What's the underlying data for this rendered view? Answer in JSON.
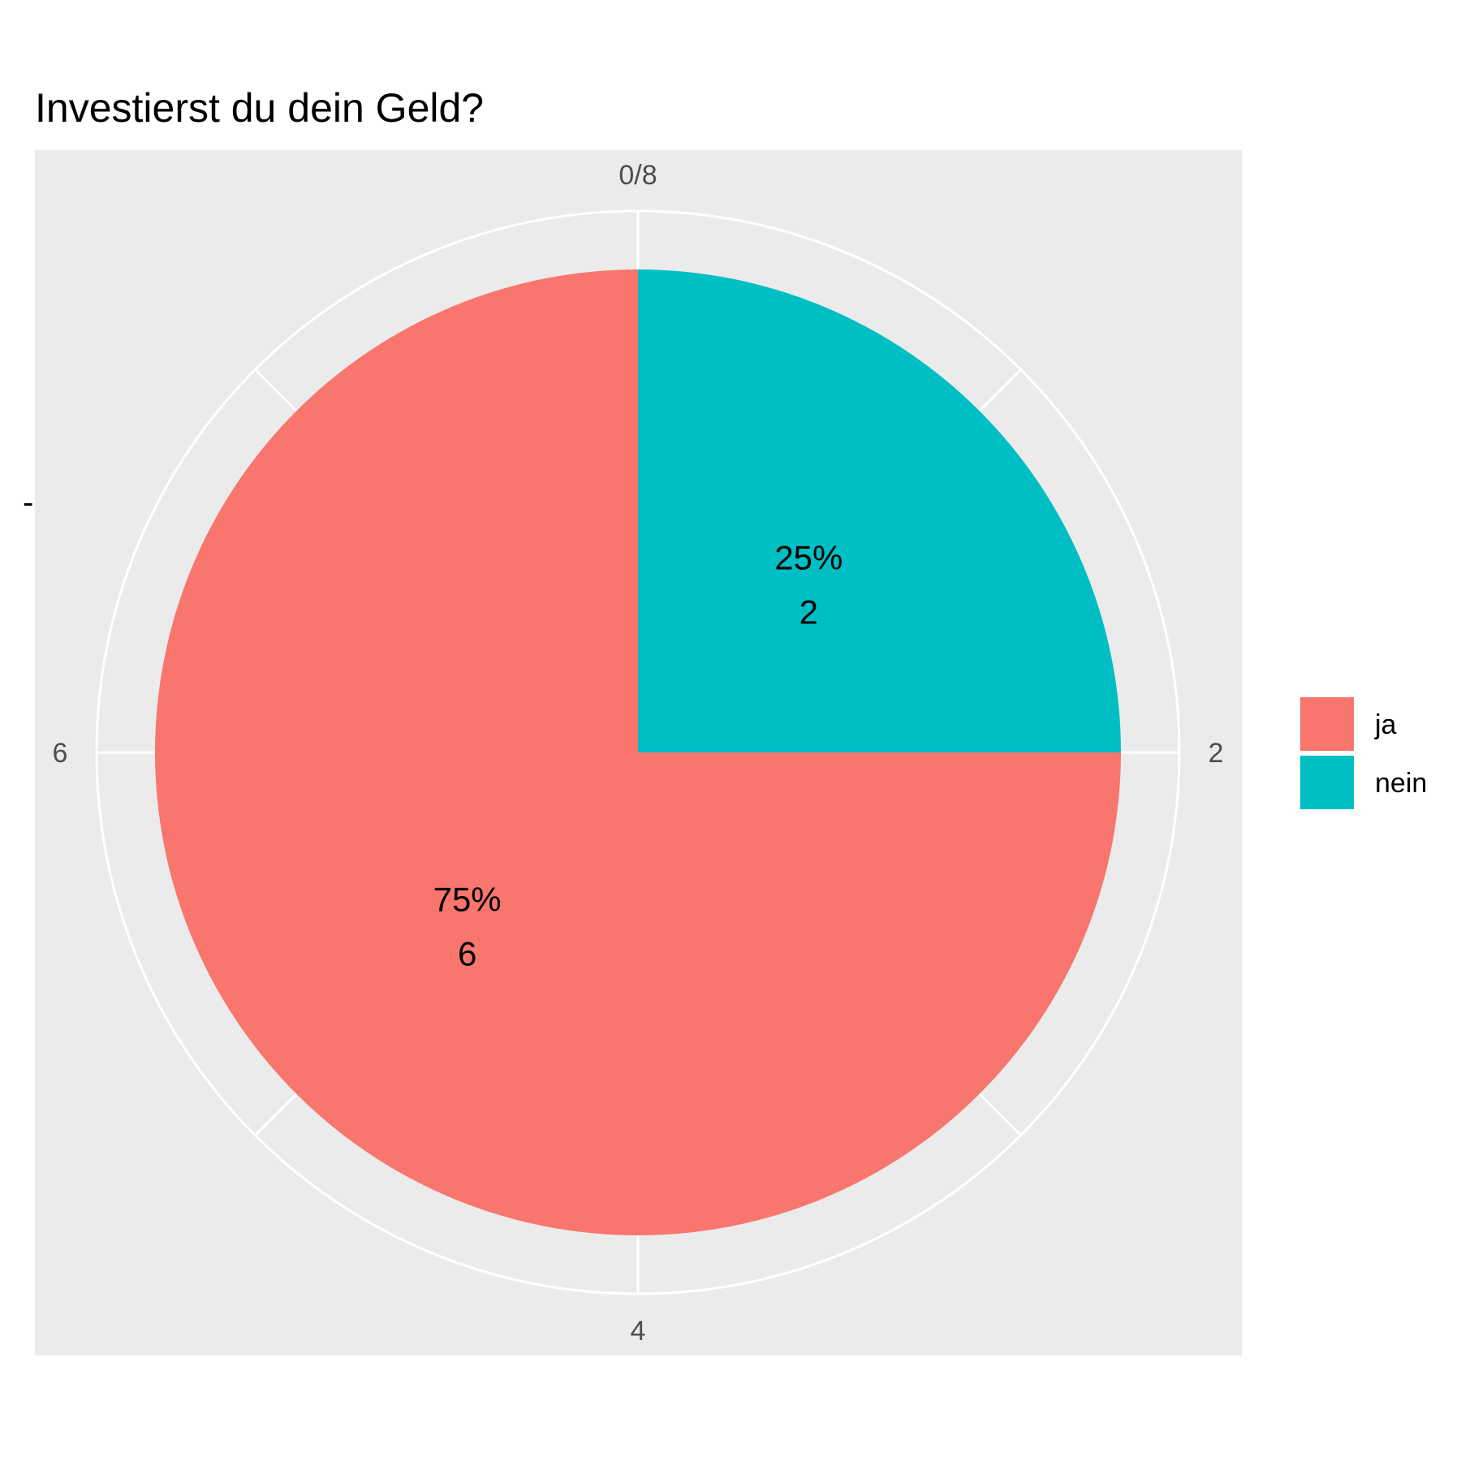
{
  "chart_data": {
    "type": "pie",
    "title": "Investierst du dein Geld?",
    "ylabel": "-",
    "categories": [
      "ja",
      "nein"
    ],
    "values": [
      6,
      2
    ],
    "percent_labels": [
      "75%",
      "25%"
    ],
    "count_labels": [
      "6",
      "2"
    ],
    "colors": [
      "#F8766D",
      "#00BFC4"
    ],
    "ticks": [
      {
        "value": 0,
        "label": "0/8"
      },
      {
        "value": 2,
        "label": "2"
      },
      {
        "value": 4,
        "label": "4"
      },
      {
        "value": 6,
        "label": "6"
      }
    ],
    "total": 8,
    "legend_position": "right",
    "grid": true,
    "panel_background": "#EBEBEB",
    "grid_color": "#FFFFFF"
  }
}
